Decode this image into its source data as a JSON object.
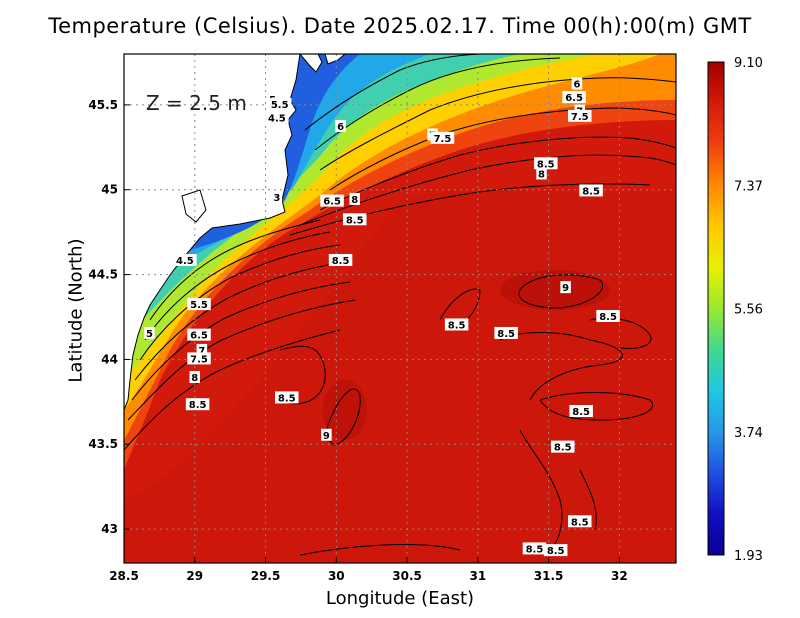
{
  "title": "Temperature (Celsius). Date 2025.02.17. Time 00(h):00(m)  GMT",
  "depth_label": "Z  =  2.5 m",
  "x_axis": {
    "label": "Longitude (East)",
    "ticks": [
      "28.5",
      "29",
      "29.5",
      "30",
      "30.5",
      "31",
      "31.5",
      "32"
    ]
  },
  "y_axis": {
    "label": "Latitude (North)",
    "ticks": [
      "43",
      "43.5",
      "44",
      "44.5",
      "45",
      "45.5"
    ]
  },
  "colorbar": {
    "ticks": [
      "9.10",
      "7.37",
      "5.56",
      "3.74",
      "1.93"
    ],
    "colors": [
      "#a00000",
      "#d21a0a",
      "#f04010",
      "#ff8a00",
      "#ffc800",
      "#e8f000",
      "#9ae830",
      "#40d890",
      "#20c8e0",
      "#2898e8",
      "#2050e0",
      "#1010c0",
      "#0a0096"
    ]
  },
  "contour_labels": [
    {
      "text": "5",
      "lon": 29.55,
      "lat": 45.53
    },
    {
      "text": "5.5",
      "lon": 29.6,
      "lat": 45.5
    },
    {
      "text": "6",
      "lon": 31.7,
      "lat": 45.62
    },
    {
      "text": "6.5",
      "lon": 31.68,
      "lat": 45.54
    },
    {
      "text": "7",
      "lon": 31.72,
      "lat": 45.46
    },
    {
      "text": "7.5",
      "lon": 31.72,
      "lat": 45.43
    },
    {
      "text": "8",
      "lon": 31.45,
      "lat": 45.09
    },
    {
      "text": "8.5",
      "lon": 31.8,
      "lat": 44.99
    },
    {
      "text": "9",
      "lon": 31.62,
      "lat": 44.42
    },
    {
      "text": "8.5",
      "lon": 31.92,
      "lat": 44.25
    },
    {
      "text": "8.5",
      "lon": 31.2,
      "lat": 44.15
    },
    {
      "text": "8.5",
      "lon": 31.73,
      "lat": 43.69
    },
    {
      "text": "8.5",
      "lon": 31.6,
      "lat": 43.48
    },
    {
      "text": "8.5",
      "lon": 31.72,
      "lat": 43.04
    },
    {
      "text": "8.5",
      "lon": 31.55,
      "lat": 42.87
    },
    {
      "text": "8.5",
      "lon": 31.4,
      "lat": 42.88
    },
    {
      "text": "4.5",
      "lon": 29.58,
      "lat": 45.42
    },
    {
      "text": "6",
      "lon": 30.03,
      "lat": 45.37
    },
    {
      "text": "7",
      "lon": 30.68,
      "lat": 45.32
    },
    {
      "text": "7.5",
      "lon": 30.75,
      "lat": 45.3
    },
    {
      "text": "6.5",
      "lon": 29.97,
      "lat": 44.93
    },
    {
      "text": "8",
      "lon": 30.13,
      "lat": 44.94
    },
    {
      "text": "8.5",
      "lon": 30.13,
      "lat": 44.82
    },
    {
      "text": "8.5",
      "lon": 30.03,
      "lat": 44.58
    },
    {
      "text": "8.5",
      "lon": 30.85,
      "lat": 44.2
    },
    {
      "text": "4.5",
      "lon": 28.93,
      "lat": 44.58
    },
    {
      "text": "5.5",
      "lon": 29.03,
      "lat": 44.32
    },
    {
      "text": "6.5",
      "lon": 29.03,
      "lat": 44.14
    },
    {
      "text": "5",
      "lon": 28.68,
      "lat": 44.15
    },
    {
      "text": "7",
      "lon": 29.05,
      "lat": 44.05
    },
    {
      "text": "7.5",
      "lon": 29.03,
      "lat": 44.0
    },
    {
      "text": "8",
      "lon": 29.0,
      "lat": 43.89
    },
    {
      "text": "8.5",
      "lon": 29.02,
      "lat": 43.73
    },
    {
      "text": "8.5",
      "lon": 29.65,
      "lat": 43.77
    },
    {
      "text": "9",
      "lon": 29.93,
      "lat": 43.55
    },
    {
      "text": "3",
      "lon": 29.58,
      "lat": 44.95
    },
    {
      "text": "8.5",
      "lon": 31.48,
      "lat": 45.15
    }
  ]
}
